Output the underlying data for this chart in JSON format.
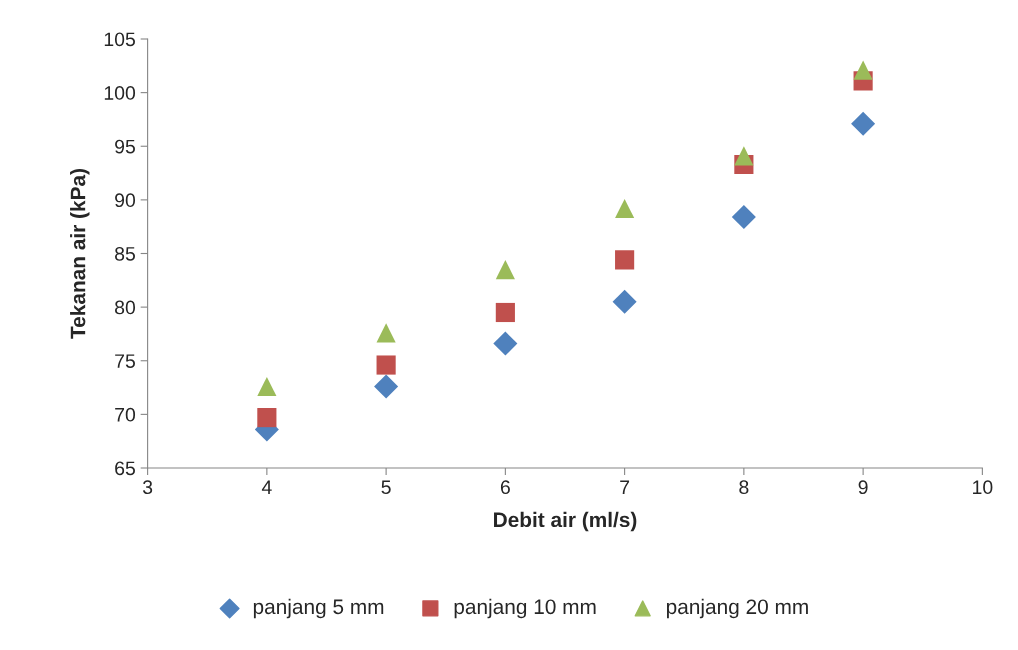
{
  "chart_data": {
    "type": "scatter",
    "xlabel": "Debit air (ml/s)",
    "ylabel": "Tekanan air (kPa)",
    "x": [
      4,
      5,
      6,
      7,
      8,
      9
    ],
    "series": [
      {
        "name": "panjang 5 mm",
        "color": "#4f81bd",
        "marker": "diamond",
        "values": [
          68.6,
          72.6,
          76.6,
          80.5,
          88.4,
          97.1
        ]
      },
      {
        "name": "panjang 10 mm",
        "color": "#c0504d",
        "marker": "square",
        "values": [
          69.7,
          74.6,
          79.5,
          84.4,
          93.3,
          101.1
        ]
      },
      {
        "name": "panjang 20 mm",
        "color": "#9bbb59",
        "marker": "triangle",
        "values": [
          72.6,
          77.6,
          83.5,
          89.2,
          94.1,
          102.1
        ]
      }
    ],
    "xlim": [
      3,
      10
    ],
    "xticks": [
      3,
      4,
      5,
      6,
      7,
      8,
      9,
      10
    ],
    "ylim": [
      65,
      105
    ],
    "yticks": [
      65,
      70,
      75,
      80,
      85,
      90,
      95,
      100,
      105
    ],
    "grid": false,
    "legend": "bottom"
  }
}
